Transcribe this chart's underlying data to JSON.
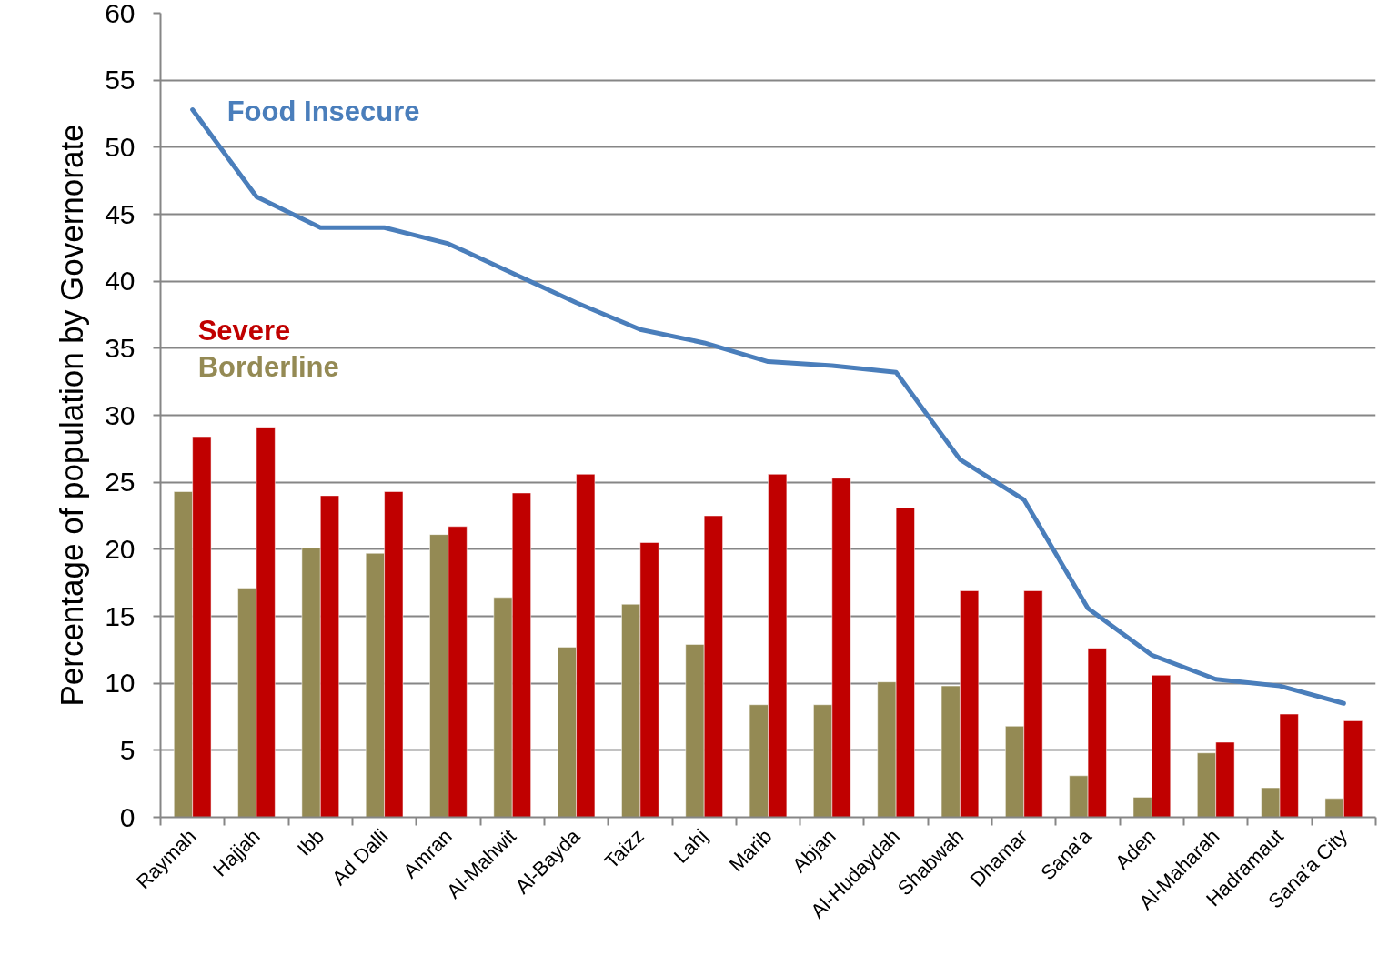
{
  "chart_data": {
    "type": "bar",
    "ylabel": "Percentage of population by Governorate",
    "categories": [
      "Raymah",
      "Hajjah",
      "Ibb",
      "Ad Dalli",
      "Amran",
      "Al-Mahwit",
      "Al-Bayda",
      "Taizz",
      "Lahj",
      "Marib",
      "Abjan",
      "Al-Hudaydah",
      "Shabwah",
      "Dhamar",
      "Sana'a",
      "Aden",
      "Al-Maharah",
      "Hadramaut",
      "Sana'a City"
    ],
    "series": [
      {
        "name": "Borderline",
        "color": "#948a54",
        "values": [
          24.3,
          17.1,
          20.1,
          19.7,
          21.1,
          16.4,
          12.7,
          15.9,
          12.9,
          8.4,
          8.4,
          10.1,
          9.8,
          6.8,
          3.1,
          1.5,
          4.8,
          2.2,
          1.4
        ]
      },
      {
        "name": "Severe",
        "color": "#c00000",
        "values": [
          28.4,
          29.1,
          24.0,
          24.3,
          21.7,
          24.2,
          25.6,
          20.5,
          22.5,
          25.6,
          25.3,
          23.1,
          16.9,
          16.9,
          12.6,
          10.6,
          5.6,
          7.7,
          7.2
        ]
      },
      {
        "name": "Food Insecure",
        "type": "line",
        "color": "#4a7ebb",
        "values": [
          52.8,
          46.3,
          44.0,
          44.0,
          42.8,
          40.6,
          38.4,
          36.4,
          35.4,
          34.0,
          33.7,
          33.2,
          26.7,
          23.7,
          15.6,
          12.1,
          10.3,
          9.8,
          8.5
        ]
      }
    ],
    "ylim": [
      0,
      60
    ],
    "yticks": [
      0,
      5,
      10,
      15,
      20,
      25,
      30,
      35,
      40,
      45,
      50,
      55,
      60
    ],
    "grid": "y",
    "line_style": "solid"
  }
}
